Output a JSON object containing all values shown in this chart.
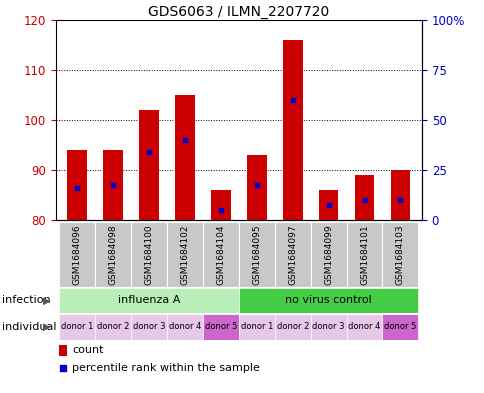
{
  "title": "GDS6063 / ILMN_2207720",
  "samples": [
    "GSM1684096",
    "GSM1684098",
    "GSM1684100",
    "GSM1684102",
    "GSM1684104",
    "GSM1684095",
    "GSM1684097",
    "GSM1684099",
    "GSM1684101",
    "GSM1684103"
  ],
  "count_values": [
    94,
    94,
    102,
    105,
    86,
    93,
    116,
    86,
    89,
    90
  ],
  "percentile_values": [
    86.5,
    87,
    93.5,
    96,
    82,
    87,
    104,
    83,
    84,
    84
  ],
  "y_min": 80,
  "y_max": 120,
  "y_ticks_left": [
    80,
    90,
    100,
    110,
    120
  ],
  "y_ticks_right": [
    0,
    25,
    50,
    75,
    100
  ],
  "y_ticks_right_labels": [
    "0",
    "25",
    "50",
    "75",
    "100%"
  ],
  "infection_groups": [
    {
      "label": "influenza A",
      "start": 0,
      "end": 5,
      "color": "#B8EEB8"
    },
    {
      "label": "no virus control",
      "start": 5,
      "end": 10,
      "color": "#44CC44"
    }
  ],
  "individual_labels": [
    "donor 1",
    "donor 2",
    "donor 3",
    "donor 4",
    "donor 5",
    "donor 1",
    "donor 2",
    "donor 3",
    "donor 4",
    "donor 5"
  ],
  "individual_colors": [
    "#E8C8E8",
    "#E8C8E8",
    "#E8C8E8",
    "#E8C8E8",
    "#CC66CC",
    "#E8C8E8",
    "#E8C8E8",
    "#E8C8E8",
    "#E8C8E8",
    "#CC66CC"
  ],
  "bar_color": "#CC0000",
  "blue_color": "#0000CC",
  "bar_width": 0.55,
  "bg_color": "#FFFFFF",
  "tick_color_left": "#CC0000",
  "tick_color_right": "#0000CC",
  "sample_box_color": "#C8C8C8",
  "legend_items": [
    {
      "color": "#CC0000",
      "label": "count"
    },
    {
      "color": "#0000CC",
      "label": "percentile rank within the sample"
    }
  ],
  "left_labels": [
    {
      "text": "infection",
      "arrow": true
    },
    {
      "text": "individual",
      "arrow": true
    }
  ]
}
